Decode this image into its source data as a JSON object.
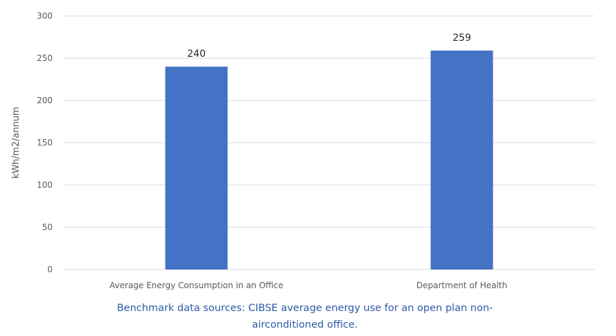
{
  "chart_data": {
    "type": "bar",
    "categories": [
      "Average Energy Consumption in an Office",
      "Department of Health"
    ],
    "values": [
      240,
      259
    ],
    "data_labels": [
      "240",
      "259"
    ],
    "title": "",
    "xlabel": "",
    "ylabel": "kWh/m2/annum",
    "ylim": [
      0,
      300
    ],
    "yticks": [
      0,
      50,
      100,
      150,
      200,
      250,
      300
    ],
    "grid": true,
    "bar_color": "#4472c4",
    "gridline_color": "#d9d9d9"
  },
  "caption": "Benchmark data sources: CIBSE average energy use for an open plan non-airconditioned office."
}
